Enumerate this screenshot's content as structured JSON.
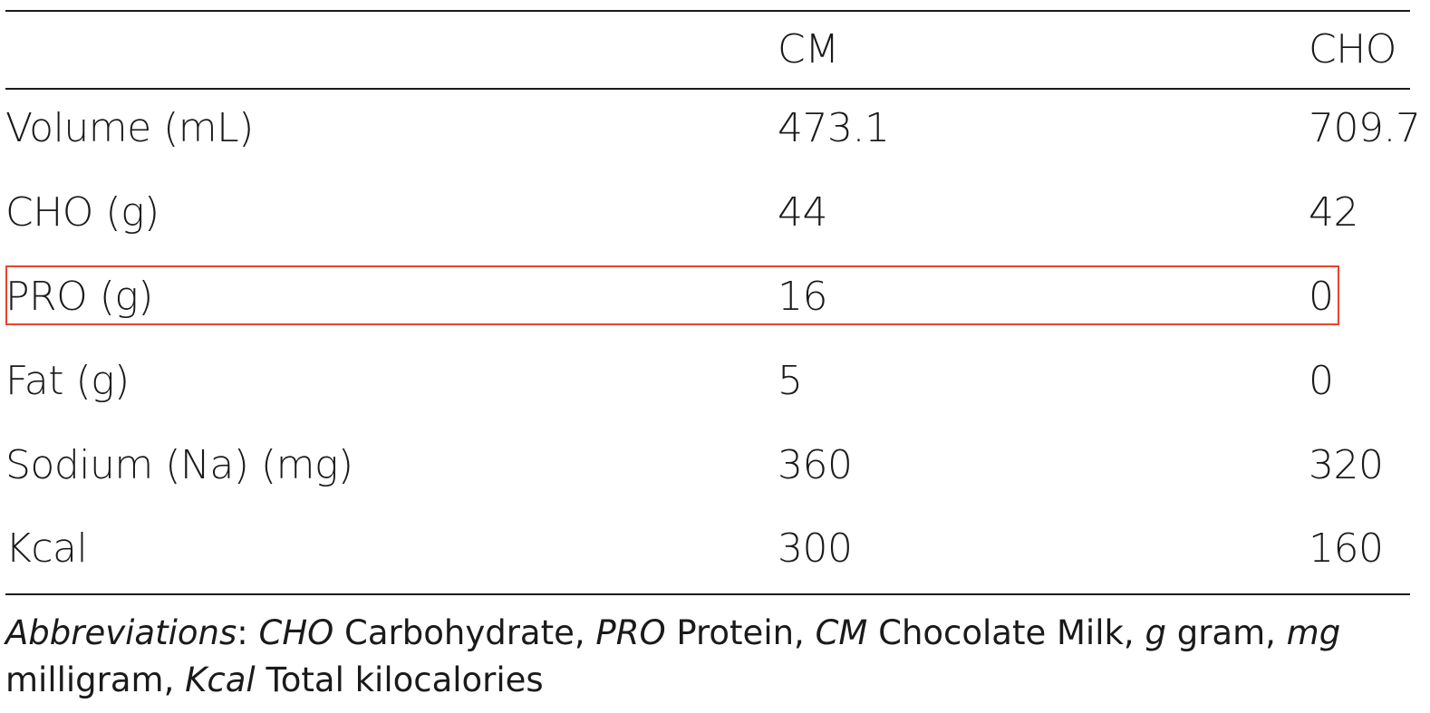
{
  "table": {
    "headers": {
      "label": "",
      "cm": "CM",
      "cho": "CHO"
    },
    "rows": [
      {
        "label": "Volume (mL)",
        "cm": "473.1",
        "cho": "709.7"
      },
      {
        "label": "CHO (g)",
        "cm": "44",
        "cho": "42"
      },
      {
        "label": "PRO (g)",
        "cm": "16",
        "cho": "0"
      },
      {
        "label": "Fat (g)",
        "cm": "5",
        "cho": "0"
      },
      {
        "label": "Sodium (Na) (mg)",
        "cm": "360",
        "cho": "320"
      },
      {
        "label": "Kcal",
        "cm": "300",
        "cho": "160"
      }
    ],
    "highlighted_row": "PRO (g)",
    "highlight_color": "#e8452c"
  },
  "footnote": {
    "lead": "Abbreviations",
    "items": [
      {
        "abbr": "CHO",
        "meaning": "Carbohydrate"
      },
      {
        "abbr": "PRO",
        "meaning": "Protein"
      },
      {
        "abbr": "CM",
        "meaning": "Chocolate Milk"
      },
      {
        "abbr": "g",
        "meaning": "gram"
      },
      {
        "abbr": "mg",
        "meaning": "milligram"
      },
      {
        "abbr": "Kcal",
        "meaning": "Total kilocalories"
      }
    ]
  }
}
